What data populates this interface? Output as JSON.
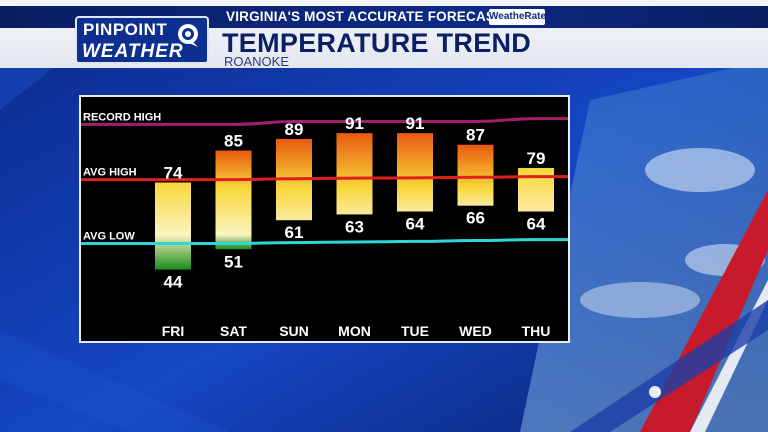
{
  "header": {
    "logo_line1": "PINPOINT",
    "logo_line2": "WEATHER",
    "tagline": "VIRGINIA'S MOST ACCURATE FORECAST",
    "badge": "WeatheRate",
    "title": "TEMPERATURE TREND",
    "location": "ROANOKE"
  },
  "colors": {
    "brand_navy": "#0d2f8f",
    "record_high_line": "#a0206e",
    "avg_high_line": "#e0201a",
    "avg_low_line": "#2ed6d6",
    "bar_hot": "#e85a10",
    "bar_warm": "#f7d83a",
    "bar_cool": "#1a8a1a"
  },
  "chart_data": {
    "type": "bar",
    "subtype": "floating-range",
    "categories": [
      "FRI",
      "SAT",
      "SUN",
      "MON",
      "TUE",
      "WED",
      "THU"
    ],
    "highs": [
      74,
      85,
      89,
      91,
      91,
      87,
      79
    ],
    "lows": [
      44,
      51,
      61,
      63,
      64,
      66,
      64
    ],
    "reference_lines": [
      {
        "name": "RECORD HIGH",
        "values": [
          94,
          94,
          95,
          95,
          95,
          95,
          96
        ]
      },
      {
        "name": "AVG HIGH",
        "values": [
          75,
          75,
          75.3,
          75.5,
          75.6,
          75.8,
          76
        ]
      },
      {
        "name": "AVG LOW",
        "values": [
          53,
          53,
          53.3,
          53.5,
          53.7,
          54,
          54.3
        ]
      }
    ],
    "ylim": [
      38,
      100
    ],
    "grid": false
  }
}
